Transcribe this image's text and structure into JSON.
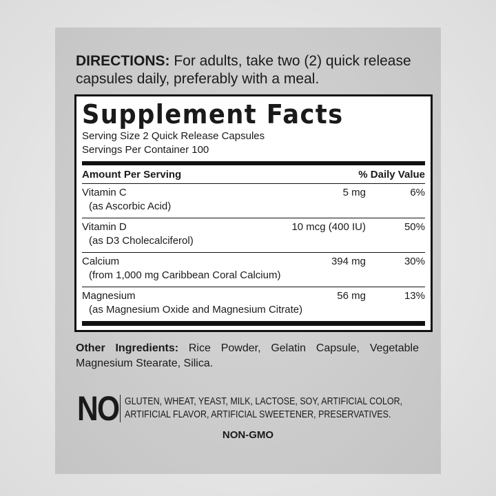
{
  "directions": {
    "label": "DIRECTIONS:",
    "text": " For adults, take two (2) quick release capsules daily, preferably with a meal."
  },
  "facts": {
    "title": "Supplement Facts",
    "serving_size": "Serving Size 2 Quick Release Capsules",
    "servings_per_container": "Servings Per Container 100",
    "header_amount": "Amount Per Serving",
    "header_dv": "% Daily Value",
    "rows": [
      {
        "name": "Vitamin C",
        "source": "(as Ascorbic Acid)",
        "amount": "5 mg",
        "dv": "6%"
      },
      {
        "name": "Vitamin D",
        "source": "(as D3 Cholecalciferol)",
        "amount": "10 mcg (400 IU)",
        "dv": "50%"
      },
      {
        "name": "Calcium",
        "source": "(from 1,000 mg Caribbean Coral Calcium)",
        "amount": "394 mg",
        "dv": "30%"
      },
      {
        "name": "Magnesium",
        "source": "(as Magnesium Oxide and Magnesium Citrate)",
        "amount": "56 mg",
        "dv": "13%"
      }
    ]
  },
  "other_ingredients": {
    "label": "Other Ingredients:",
    "text": " Rice Powder, Gelatin Capsule, Vegetable Magnesium Stearate, Silica."
  },
  "free_from": {
    "big": "NO",
    "line1": "GLUTEN, WHEAT, YEAST, MILK, LACTOSE, SOY, ARTIFICIAL COLOR,",
    "line2": "ARTIFICIAL FLAVOR, ARTIFICIAL SWEETENER, PRESERVATIVES."
  },
  "non_gmo": "NON-GMO"
}
